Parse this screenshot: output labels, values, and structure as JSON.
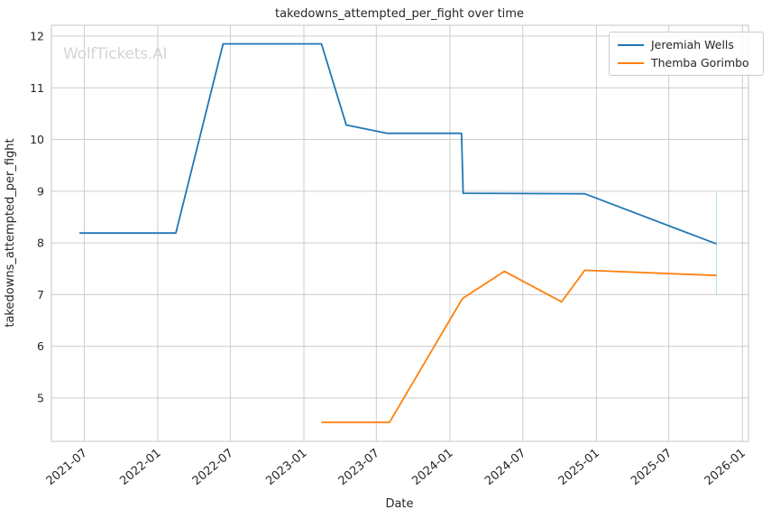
{
  "watermark": "WolfTickets.AI",
  "chart_data": {
    "type": "line",
    "title": "takedowns_attempted_per_fight over time",
    "xlabel": "Date",
    "ylabel": "takedowns_attempted_per_fight",
    "grid": true,
    "legend_position": "upper right",
    "x_ticks": [
      "2021-07",
      "2022-01",
      "2022-07",
      "2023-01",
      "2023-07",
      "2024-01",
      "2024-07",
      "2025-01",
      "2025-07",
      "2026-01"
    ],
    "y_ticks": [
      5,
      6,
      7,
      8,
      9,
      10,
      11,
      12
    ],
    "x_range": [
      "2021-04-10",
      "2026-01-16"
    ],
    "y_range": [
      4.16,
      12.21
    ],
    "series": [
      {
        "name": "Jeremiah Wells",
        "color": "#1f77b4",
        "points": [
          [
            "2021-06-19",
            8.19
          ],
          [
            "2022-02-15",
            8.19
          ],
          [
            "2022-06-13",
            11.85
          ],
          [
            "2023-02-14",
            11.85
          ],
          [
            "2023-04-17",
            10.28
          ],
          [
            "2023-07-29",
            10.12
          ],
          [
            "2024-01-30",
            10.12
          ],
          [
            "2024-02-03",
            8.96
          ],
          [
            "2024-12-03",
            8.95
          ],
          [
            "2025-10-28",
            7.98
          ]
        ]
      },
      {
        "name": "Themba Gorimbo",
        "color": "#ff7f0e",
        "points": [
          [
            "2023-02-14",
            4.53
          ],
          [
            "2023-08-03",
            4.53
          ],
          [
            "2024-02-01",
            6.92
          ],
          [
            "2024-05-16",
            7.45
          ],
          [
            "2024-10-06",
            6.86
          ],
          [
            "2024-12-03",
            7.47
          ],
          [
            "2025-10-28",
            7.37
          ]
        ]
      }
    ],
    "error_bar": {
      "series": "Jeremiah Wells",
      "date": "2025-10-28",
      "low": 6.98,
      "high": 8.98,
      "color": "#c3dcec"
    }
  },
  "colors": {
    "grid": "#cccccc",
    "frame": "#c4c4c4",
    "text": "#262626",
    "background": "#ffffff"
  }
}
